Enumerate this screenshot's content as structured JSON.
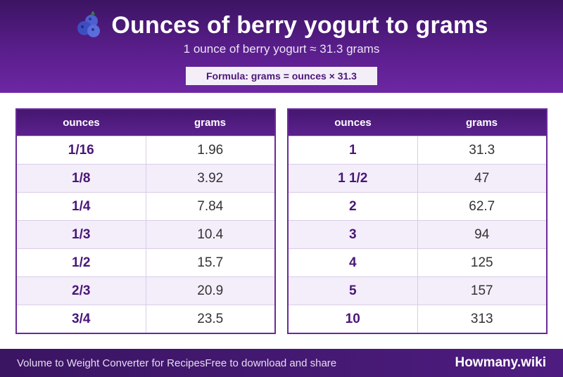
{
  "header": {
    "title": "Ounces of berry yogurt to grams",
    "subtitle": "1 ounce of berry yogurt ≈ 31.3 grams",
    "formula": "Formula: grams = ounces × 31.3",
    "icon": "blueberry-icon"
  },
  "columns": {
    "ounces": "ounces",
    "grams": "grams"
  },
  "left_table": [
    {
      "ounces": "1/16",
      "grams": "1.96"
    },
    {
      "ounces": "1/8",
      "grams": "3.92"
    },
    {
      "ounces": "1/4",
      "grams": "7.84"
    },
    {
      "ounces": "1/3",
      "grams": "10.4"
    },
    {
      "ounces": "1/2",
      "grams": "15.7"
    },
    {
      "ounces": "2/3",
      "grams": "20.9"
    },
    {
      "ounces": "3/4",
      "grams": "23.5"
    }
  ],
  "right_table": [
    {
      "ounces": "1",
      "grams": "31.3"
    },
    {
      "ounces": "1 1/2",
      "grams": "47"
    },
    {
      "ounces": "2",
      "grams": "62.7"
    },
    {
      "ounces": "3",
      "grams": "94"
    },
    {
      "ounces": "4",
      "grams": "125"
    },
    {
      "ounces": "5",
      "grams": "157"
    },
    {
      "ounces": "10",
      "grams": "313"
    }
  ],
  "footer": {
    "left": "Volume to Weight Converter for Recipes",
    "mid": "Free to download and share",
    "brand": "Howmany.wiki"
  },
  "colors": {
    "header_bg": "#5a1e8c",
    "accent": "#4a1677",
    "row_alt": "#f3eefa"
  }
}
